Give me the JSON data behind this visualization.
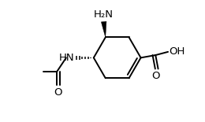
{
  "line_color": "#000000",
  "line_width": 1.4,
  "bg_color": "#ffffff",
  "font_size": 9.5,
  "label_color": "#000000",
  "ring_r": 0.72,
  "xlim": [
    -2.6,
    2.2
  ],
  "ylim": [
    -1.9,
    1.8
  ]
}
